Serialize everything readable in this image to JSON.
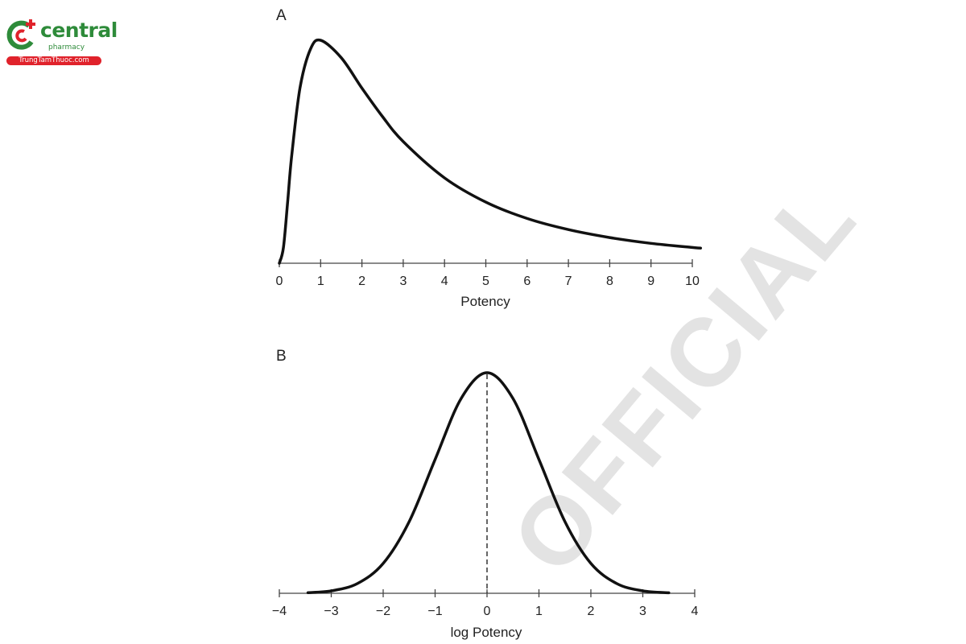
{
  "logo": {
    "name": "central",
    "sub": "pharmacy",
    "tagline": "TrungTamThuoc.com",
    "colors": {
      "green": "#2e8b3a",
      "red": "#e0222b"
    }
  },
  "watermark": "OFFICIAL",
  "chart_data": [
    {
      "type": "line",
      "panel": "A",
      "xlabel": "Potency",
      "ylabel": "",
      "xlim": [
        0,
        10
      ],
      "ylim": [
        0,
        0.242
      ],
      "xticks": [
        "0",
        "1",
        "2",
        "3",
        "4",
        "5",
        "6",
        "7",
        "8",
        "9",
        "10"
      ],
      "grid": false,
      "y_axis_shown": false,
      "series": [
        {
          "x": [
            0,
            0.1,
            0.2,
            0.3,
            0.5,
            0.75,
            1,
            1.5,
            2,
            2.5,
            3,
            4,
            5,
            6,
            7,
            8,
            9,
            10,
            10.2
          ],
          "y": [
            0,
            0.0171,
            0.0663,
            0.117,
            0.19,
            0.232,
            0.242,
            0.223,
            0.19,
            0.159,
            0.132,
            0.0926,
            0.0663,
            0.0486,
            0.0365,
            0.0279,
            0.0216,
            0.0171,
            0.0164
          ]
        }
      ],
      "color": "#111111"
    },
    {
      "type": "line",
      "panel": "B",
      "xlabel": "log Potency",
      "ylabel": "",
      "xlim": [
        -4,
        4
      ],
      "ylim": [
        0,
        0.3989
      ],
      "xticks": [
        "−4",
        "−3",
        "−2",
        "−1",
        "0",
        "1",
        "2",
        "3",
        "4"
      ],
      "grid": false,
      "y_axis_shown": false,
      "reference_line": {
        "x": 0,
        "style": "dashed"
      },
      "series": [
        {
          "x": [
            -3.45,
            -3,
            -2.5,
            -2,
            -1.5,
            -1,
            -0.5,
            0,
            0.5,
            1,
            1.5,
            2,
            2.5,
            3,
            3.5
          ],
          "y": [
            0.00104,
            0.00443,
            0.0175,
            0.054,
            0.1295,
            0.242,
            0.3521,
            0.3989,
            0.3521,
            0.242,
            0.1295,
            0.054,
            0.0175,
            0.00443,
            0.00087
          ]
        }
      ],
      "color": "#111111"
    }
  ]
}
